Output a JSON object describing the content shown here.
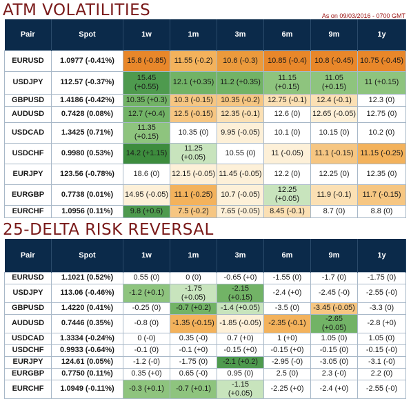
{
  "atm": {
    "title": "ATM VOLATILITIES",
    "as_of": "As on 09/03/2016 - 0700 GMT",
    "headers": [
      "Pair",
      "Spot",
      "1w",
      "1m",
      "3m",
      "6m",
      "9m",
      "1y"
    ],
    "rows": [
      {
        "pair": "EURUSD",
        "spot": "1.0977 (-0.41%)",
        "cells": [
          {
            "text": "15.8 (-0.85)",
            "color": "#e8872a"
          },
          {
            "text": "11.55 (-0.2)",
            "color": "#f3b25c"
          },
          {
            "text": "10.6 (-0.3)",
            "color": "#eb9a3c"
          },
          {
            "text": "10.85 (-0.4)",
            "color": "#e8872a"
          },
          {
            "text": "10.8 (-0.45)",
            "color": "#e8872a"
          },
          {
            "text": "10.75 (-0.45)",
            "color": "#e8872a"
          }
        ]
      },
      {
        "pair": "USDJPY",
        "spot": "112.57 (-0.37%)",
        "cells": [
          {
            "text": "15.45 (+0.55)",
            "color": "#4e9a4e"
          },
          {
            "text": "12.1 (+0.35)",
            "color": "#72b366"
          },
          {
            "text": "11.2 (+0.35)",
            "color": "#72b366"
          },
          {
            "text": "11.15 (+0.15)",
            "color": "#8ec47e"
          },
          {
            "text": "11.05 (+0.15)",
            "color": "#8ec47e"
          },
          {
            "text": "11 (+0.15)",
            "color": "#8ec47e"
          }
        ]
      },
      {
        "pair": "GBPUSD",
        "spot": "1.4186 (-0.42%)",
        "cells": [
          {
            "text": "10.35 (+0.3)",
            "color": "#72b366"
          },
          {
            "text": "10.3 (-0.15)",
            "color": "#f6c682"
          },
          {
            "text": "10.35 (-0.2)",
            "color": "#f6c682"
          },
          {
            "text": "12.75 (-0.1)",
            "color": "#fbe0b4"
          },
          {
            "text": "12.4 (-0.1)",
            "color": "#fbe0b4"
          },
          {
            "text": "12.3 (0)",
            "color": "#ffffff"
          }
        ]
      },
      {
        "pair": "AUDUSD",
        "spot": "0.7428 (0.08%)",
        "cells": [
          {
            "text": "12.7 (+0.4)",
            "color": "#72b366"
          },
          {
            "text": "12.5 (-0.15)",
            "color": "#f6c682"
          },
          {
            "text": "12.35 (-0.1)",
            "color": "#fbe0b4"
          },
          {
            "text": "12.6 (0)",
            "color": "#ffffff"
          },
          {
            "text": "12.65 (-0.05)",
            "color": "#fdf0d8"
          },
          {
            "text": "12.75 (0)",
            "color": "#ffffff"
          }
        ]
      },
      {
        "pair": "USDCAD",
        "spot": "1.3425 (0.71%)",
        "cells": [
          {
            "text": "11.35 (+0.15)",
            "color": "#8ec47e"
          },
          {
            "text": "10.35 (0)",
            "color": "#ffffff"
          },
          {
            "text": "9.95 (-0.05)",
            "color": "#fdf0d8"
          },
          {
            "text": "10.1 (0)",
            "color": "#ffffff"
          },
          {
            "text": "10.15 (0)",
            "color": "#ffffff"
          },
          {
            "text": "10.2 (0)",
            "color": "#ffffff"
          }
        ]
      },
      {
        "pair": "USDCHF",
        "spot": "0.9980 (0.53%)",
        "cells": [
          {
            "text": "14.2 (+1.15)",
            "color": "#3d8c3d"
          },
          {
            "text": "11.25 (+0.05)",
            "color": "#c8e4bd"
          },
          {
            "text": "10.55 (0)",
            "color": "#ffffff"
          },
          {
            "text": "11 (-0.05)",
            "color": "#fdf0d8"
          },
          {
            "text": "11.1 (-0.15)",
            "color": "#f6c682"
          },
          {
            "text": "11.15 (-0.25)",
            "color": "#f3b25c"
          }
        ]
      },
      {
        "pair": "EURJPY",
        "spot": "123.56 (-0.78%)",
        "cells": [
          {
            "text": "18.6 (0)",
            "color": "#ffffff"
          },
          {
            "text": "12.15 (-0.05)",
            "color": "#fdf0d8"
          },
          {
            "text": "11.45 (-0.05)",
            "color": "#fdf0d8"
          },
          {
            "text": "12.2 (0)",
            "color": "#ffffff"
          },
          {
            "text": "12.25 (0)",
            "color": "#ffffff"
          },
          {
            "text": "12.35 (0)",
            "color": "#ffffff"
          }
        ]
      },
      {
        "pair": "EURGBP",
        "spot": "0.7738 (0.01%)",
        "cells": [
          {
            "text": "14.95 (-0.05)",
            "color": "#fdf0d8"
          },
          {
            "text": "11.1 (-0.25)",
            "color": "#f3b25c"
          },
          {
            "text": "10.7 (-0.05)",
            "color": "#fdf0d8"
          },
          {
            "text": "12.25 (+0.05)",
            "color": "#c8e4bd"
          },
          {
            "text": "11.9 (-0.1)",
            "color": "#fbe0b4"
          },
          {
            "text": "11.7 (-0.15)",
            "color": "#f6c682"
          }
        ]
      },
      {
        "pair": "EURCHF",
        "spot": "1.0956 (0.11%)",
        "cells": [
          {
            "text": "9.8 (+0.6)",
            "color": "#4e9a4e"
          },
          {
            "text": "7.5 (-0.2)",
            "color": "#f6c682"
          },
          {
            "text": "7.65 (-0.05)",
            "color": "#fdf0d8"
          },
          {
            "text": "8.45 (-0.1)",
            "color": "#fbe0b4"
          },
          {
            "text": "8.7 (0)",
            "color": "#ffffff"
          },
          {
            "text": "8.8 (0)",
            "color": "#ffffff"
          }
        ]
      }
    ]
  },
  "rr": {
    "title": "25-DELTA RISK REVERSAL",
    "headers": [
      "Pair",
      "Spot",
      "1w",
      "1m",
      "3m",
      "6m",
      "9m",
      "1y"
    ],
    "rows": [
      {
        "pair": "EURUSD",
        "spot": "1.1021 (0.52%)",
        "cells": [
          {
            "text": "0.55 (0)",
            "color": "#ffffff"
          },
          {
            "text": "0 (0)",
            "color": "#ffffff"
          },
          {
            "text": "-0.65 (+0)",
            "color": "#ffffff"
          },
          {
            "text": "-1.55 (0)",
            "color": "#ffffff"
          },
          {
            "text": "-1.7 (0)",
            "color": "#ffffff"
          },
          {
            "text": "-1.75 (0)",
            "color": "#ffffff"
          }
        ]
      },
      {
        "pair": "USDJPY",
        "spot": "113.06 (-0.46%)",
        "cells": [
          {
            "text": "-1.2 (+0.1)",
            "color": "#8ec47e"
          },
          {
            "text": "-1.75 (+0.05)",
            "color": "#c8e4bd"
          },
          {
            "text": "-2.15 (+0.15)",
            "color": "#72b366"
          },
          {
            "text": "-2.4 (+0)",
            "color": "#ffffff"
          },
          {
            "text": "-2.45 (-0)",
            "color": "#ffffff"
          },
          {
            "text": "-2.55 (-0)",
            "color": "#ffffff"
          }
        ]
      },
      {
        "pair": "GBPUSD",
        "spot": "1.4220 (0.41%)",
        "cells": [
          {
            "text": "-0.25 (0)",
            "color": "#ffffff"
          },
          {
            "text": "-0.7 (+0.2)",
            "color": "#72b366"
          },
          {
            "text": "-1.4 (+0.05)",
            "color": "#c8e4bd"
          },
          {
            "text": "-3.5 (0)",
            "color": "#ffffff"
          },
          {
            "text": "-3.45 (-0.05)",
            "color": "#f6c682"
          },
          {
            "text": "-3.3 (0)",
            "color": "#ffffff"
          }
        ]
      },
      {
        "pair": "AUDUSD",
        "spot": "0.7446 (0.35%)",
        "cells": [
          {
            "text": "-0.8 (0)",
            "color": "#ffffff"
          },
          {
            "text": "-1.35 (-0.15)",
            "color": "#f3b25c"
          },
          {
            "text": "-1.85 (-0.05)",
            "color": "#fdf0d8"
          },
          {
            "text": "-2.35 (-0.1)",
            "color": "#f3b25c"
          },
          {
            "text": "-2.65 (+0.05)",
            "color": "#72b366"
          },
          {
            "text": "-2.8 (+0)",
            "color": "#ffffff"
          }
        ]
      },
      {
        "pair": "USDCAD",
        "spot": "1.3334 (-0.24%)",
        "cells": [
          {
            "text": "0 (-0)",
            "color": "#ffffff"
          },
          {
            "text": "0.35 (-0)",
            "color": "#ffffff"
          },
          {
            "text": "0.7 (+0)",
            "color": "#ffffff"
          },
          {
            "text": "1 (+0)",
            "color": "#ffffff"
          },
          {
            "text": "1.05 (0)",
            "color": "#ffffff"
          },
          {
            "text": "1.05 (0)",
            "color": "#ffffff"
          }
        ]
      },
      {
        "pair": "USDCHF",
        "spot": "0.9933 (-0.64%)",
        "cells": [
          {
            "text": "-0.1 (0)",
            "color": "#ffffff"
          },
          {
            "text": "-0.1 (+0)",
            "color": "#ffffff"
          },
          {
            "text": "-0.15 (+0)",
            "color": "#ffffff"
          },
          {
            "text": "-0.15 (+0)",
            "color": "#ffffff"
          },
          {
            "text": "-0.15 (0)",
            "color": "#ffffff"
          },
          {
            "text": "-0.15 (-0)",
            "color": "#ffffff"
          }
        ]
      },
      {
        "pair": "EURJPY",
        "spot": "124.61 (0.05%)",
        "cells": [
          {
            "text": "-1.2 (-0)",
            "color": "#ffffff"
          },
          {
            "text": "-1.75 (0)",
            "color": "#ffffff"
          },
          {
            "text": "-2.1 (+0.2)",
            "color": "#4e9a4e"
          },
          {
            "text": "-2.95 (-0)",
            "color": "#ffffff"
          },
          {
            "text": "-3.05 (0)",
            "color": "#ffffff"
          },
          {
            "text": "-3.1 (-0)",
            "color": "#ffffff"
          }
        ]
      },
      {
        "pair": "EURGBP",
        "spot": "0.7750 (0.11%)",
        "cells": [
          {
            "text": "0.35 (+0)",
            "color": "#ffffff"
          },
          {
            "text": "0.65 (-0)",
            "color": "#ffffff"
          },
          {
            "text": "0.95 (0)",
            "color": "#ffffff"
          },
          {
            "text": "2.5 (0)",
            "color": "#ffffff"
          },
          {
            "text": "2.3 (-0)",
            "color": "#ffffff"
          },
          {
            "text": "2.2 (0)",
            "color": "#ffffff"
          }
        ]
      },
      {
        "pair": "EURCHF",
        "spot": "1.0949 (-0.11%)",
        "cells": [
          {
            "text": "-0.3 (+0.1)",
            "color": "#8ec47e"
          },
          {
            "text": "-0.7 (+0.1)",
            "color": "#8ec47e"
          },
          {
            "text": "-1.15 (+0.05)",
            "color": "#c8e4bd"
          },
          {
            "text": "-2.25 (+0)",
            "color": "#ffffff"
          },
          {
            "text": "-2.4 (+0)",
            "color": "#ffffff"
          },
          {
            "text": "-2.55 (-0)",
            "color": "#ffffff"
          }
        ]
      }
    ]
  }
}
